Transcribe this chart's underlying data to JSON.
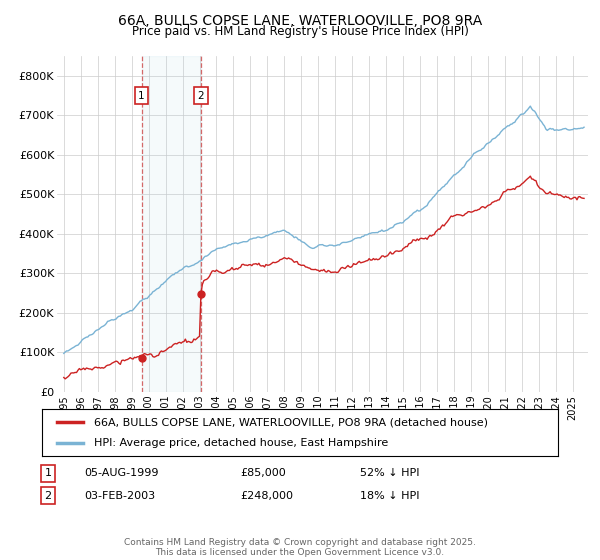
{
  "title_line1": "66A, BULLS COPSE LANE, WATERLOOVILLE, PO8 9RA",
  "title_line2": "Price paid vs. HM Land Registry's House Price Index (HPI)",
  "legend_line1": "66A, BULLS COPSE LANE, WATERLOOVILLE, PO8 9RA (detached house)",
  "legend_line2": "HPI: Average price, detached house, East Hampshire",
  "ylim": [
    0,
    850000
  ],
  "yticks": [
    0,
    100000,
    200000,
    300000,
    400000,
    500000,
    600000,
    700000,
    800000
  ],
  "ytick_labels": [
    "£0",
    "£100K",
    "£200K",
    "£300K",
    "£400K",
    "£500K",
    "£600K",
    "£700K",
    "£800K"
  ],
  "purchase1_date": 1999.583,
  "purchase1_price": 85000,
  "purchase1_label": "1",
  "purchase2_date": 2003.083,
  "purchase2_price": 248000,
  "purchase2_label": "2",
  "hpi_color": "#7ab3d4",
  "price_color": "#cc2222",
  "purchase_marker_color": "#cc2222",
  "footer": "Contains HM Land Registry data © Crown copyright and database right 2025.\nThis data is licensed under the Open Government Licence v3.0.",
  "background_color": "#ffffff",
  "grid_color": "#cccccc",
  "xlim_left": 1994.6,
  "xlim_right": 2025.9,
  "label1_date": "05-AUG-1999",
  "label1_price": "£85,000",
  "label1_hpi": "52% ↓ HPI",
  "label2_date": "03-FEB-2003",
  "label2_price": "£248,000",
  "label2_hpi": "18% ↓ HPI"
}
